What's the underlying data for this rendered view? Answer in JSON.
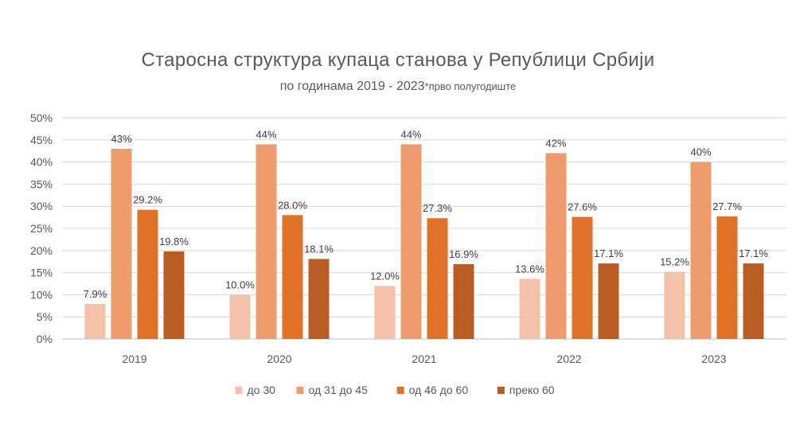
{
  "chart_data": {
    "type": "bar",
    "title": "Старосна структура купаца станова у Републици Србији",
    "subtitle": "по годинама 2019 - 2023",
    "subtitle_note": "*прво полугодиште",
    "categories": [
      "2019",
      "2020",
      "2021",
      "2022",
      "2023"
    ],
    "series": [
      {
        "name": "до 30",
        "color": "#F4C1A9",
        "values": [
          7.9,
          10.0,
          12.0,
          13.6,
          15.2
        ],
        "labels": [
          "7.9%",
          "10.0%",
          "12.0%",
          "13.6%",
          "15.2%"
        ]
      },
      {
        "name": "од 31 до 45",
        "color": "#EE9B6E",
        "values": [
          43,
          44,
          44,
          42,
          40
        ],
        "labels": [
          "43%",
          "44%",
          "44%",
          "42%",
          "40%"
        ]
      },
      {
        "name": "од 46 до 60",
        "color": "#DF7227",
        "values": [
          29.2,
          28.0,
          27.3,
          27.6,
          27.7
        ],
        "labels": [
          "29.2%",
          "28.0%",
          "27.3%",
          "27.6%",
          "27.7%"
        ]
      },
      {
        "name": "преко 60",
        "color": "#B95D24",
        "values": [
          19.8,
          18.1,
          16.9,
          17.1,
          17.1
        ],
        "labels": [
          "19.8%",
          "18.1%",
          "16.9%",
          "17.1%",
          "17.1%"
        ]
      }
    ],
    "ylim": [
      0,
      50
    ],
    "yticks": [
      "0%",
      "5%",
      "10%",
      "15%",
      "20%",
      "25%",
      "30%",
      "35%",
      "40%",
      "45%",
      "50%"
    ],
    "grid": true,
    "legend_position": "bottom"
  }
}
